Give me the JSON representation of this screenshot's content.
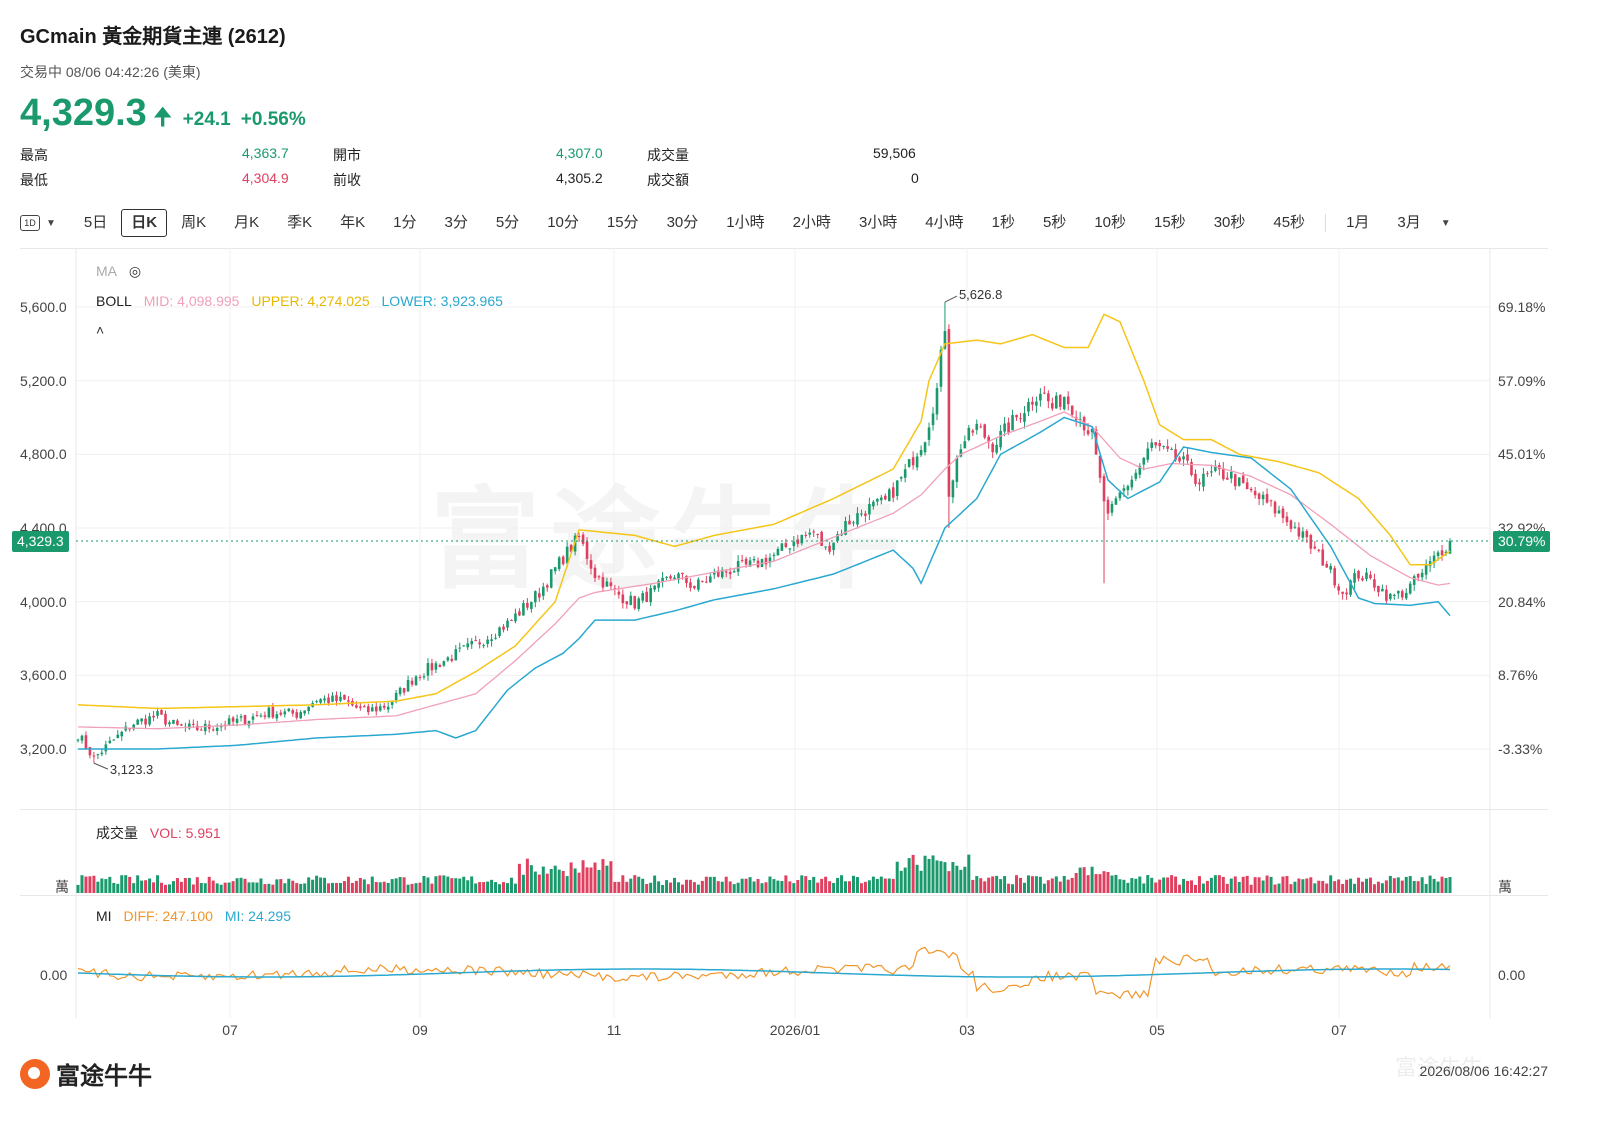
{
  "header": {
    "title": "GCmain  黃金期貨主連 (2612)",
    "status": "交易中 08/06 04:42:26 (美東)",
    "price": "4,329.3",
    "change": "+24.1",
    "change_pct": "+0.56%"
  },
  "stats": {
    "high_label": "最高",
    "high": "4,363.7",
    "low_label": "最低",
    "low": "4,304.9",
    "open_label": "開市",
    "open": "4,307.0",
    "prev_label": "前收",
    "prev": "4,305.2",
    "vol_label": "成交量",
    "vol": "59,506",
    "amt_label": "成交額",
    "amt": "0"
  },
  "tabs": {
    "period_icon": "1D",
    "items": [
      "5日",
      "日K",
      "周K",
      "月K",
      "季K",
      "年K",
      "1分",
      "3分",
      "5分",
      "10分",
      "15分",
      "30分",
      "1小時",
      "2小時",
      "3小時",
      "4小時",
      "1秒",
      "5秒",
      "10秒",
      "15秒",
      "30秒",
      "45秒"
    ],
    "active": "日K",
    "extra": [
      "1月",
      "3月"
    ]
  },
  "indicators": {
    "ma_label": "MA",
    "boll_label": "BOLL",
    "boll_mid": "MID: 4,098.995",
    "boll_upper": "UPPER: 4,274.025",
    "boll_lower": "LOWER: 3,923.965",
    "vol_label": "成交量",
    "vol_value": "VOL: 5.951",
    "vol_unit": "萬",
    "mi_label": "MI",
    "mi_diff": "DIFF: 247.100",
    "mi_mi": "MI: 24.295"
  },
  "colors": {
    "up": "#1a9a6c",
    "down": "#e04060",
    "boll_mid": "#f0a0b8",
    "boll_upper": "#f5c518",
    "boll_lower": "#2aa8d0",
    "mi_diff": "#f0962a",
    "mi_line": "#2aa8d0"
  },
  "chart_data": {
    "type": "candlestick",
    "title": "",
    "y_ticks": [
      "5,600.0",
      "5,200.0",
      "4,800.0",
      "4,400.0",
      "4,000.0",
      "3,600.0",
      "3,200.0"
    ],
    "pct_ticks": [
      "69.18%",
      "57.09%",
      "45.01%",
      "32.92%",
      "20.84%",
      "8.76%",
      "-3.33%"
    ],
    "x_ticks": [
      "07",
      "09",
      "11",
      "2026/01",
      "03",
      "05",
      "07"
    ],
    "ylim": [
      3000,
      5760
    ],
    "current_price": 4329.3,
    "current_price_label": "4,329.3",
    "current_pct_label": "30.79%",
    "max_label": "5,626.8",
    "min_label": "3,123.3",
    "close_anchors": [
      [
        0,
        3280
      ],
      [
        4,
        3150
      ],
      [
        8,
        3230
      ],
      [
        14,
        3340
      ],
      [
        20,
        3380
      ],
      [
        25,
        3320
      ],
      [
        30,
        3310
      ],
      [
        36,
        3330
      ],
      [
        42,
        3360
      ],
      [
        48,
        3400
      ],
      [
        55,
        3390
      ],
      [
        60,
        3470
      ],
      [
        67,
        3460
      ],
      [
        72,
        3400
      ],
      [
        78,
        3440
      ],
      [
        85,
        3600
      ],
      [
        92,
        3680
      ],
      [
        100,
        3770
      ],
      [
        108,
        3880
      ],
      [
        116,
        4050
      ],
      [
        122,
        4240
      ],
      [
        126,
        4350
      ],
      [
        130,
        4150
      ],
      [
        135,
        4050
      ],
      [
        140,
        3990
      ],
      [
        145,
        4060
      ],
      [
        150,
        4150
      ],
      [
        155,
        4080
      ],
      [
        160,
        4140
      ],
      [
        165,
        4180
      ],
      [
        170,
        4200
      ],
      [
        175,
        4250
      ],
      [
        180,
        4330
      ],
      [
        185,
        4380
      ],
      [
        188,
        4280
      ],
      [
        193,
        4420
      ],
      [
        198,
        4500
      ],
      [
        203,
        4540
      ],
      [
        208,
        4700
      ],
      [
        213,
        4900
      ],
      [
        216,
        5150
      ],
      [
        218,
        5500
      ],
      [
        219,
        4600
      ],
      [
        222,
        4850
      ],
      [
        226,
        4950
      ],
      [
        230,
        4850
      ],
      [
        234,
        4950
      ],
      [
        238,
        5050
      ],
      [
        242,
        5150
      ],
      [
        245,
        5050
      ],
      [
        248,
        5120
      ],
      [
        252,
        5000
      ],
      [
        255,
        4900
      ],
      [
        257,
        4650
      ],
      [
        259,
        4450
      ],
      [
        262,
        4580
      ],
      [
        266,
        4700
      ],
      [
        270,
        4850
      ],
      [
        274,
        4800
      ],
      [
        278,
        4750
      ],
      [
        282,
        4650
      ],
      [
        286,
        4700
      ],
      [
        290,
        4680
      ],
      [
        294,
        4600
      ],
      [
        298,
        4550
      ],
      [
        302,
        4480
      ],
      [
        306,
        4400
      ],
      [
        310,
        4300
      ],
      [
        314,
        4200
      ],
      [
        318,
        4050
      ],
      [
        322,
        4150
      ],
      [
        326,
        4100
      ],
      [
        330,
        4020
      ],
      [
        334,
        4060
      ],
      [
        338,
        4150
      ],
      [
        342,
        4260
      ],
      [
        345,
        4329.3
      ]
    ],
    "mid_anchors": [
      [
        0,
        3320
      ],
      [
        20,
        3310
      ],
      [
        40,
        3330
      ],
      [
        60,
        3360
      ],
      [
        80,
        3380
      ],
      [
        100,
        3500
      ],
      [
        110,
        3680
      ],
      [
        120,
        3880
      ],
      [
        126,
        4020
      ],
      [
        130,
        4050
      ],
      [
        145,
        4100
      ],
      [
        160,
        4160
      ],
      [
        175,
        4220
      ],
      [
        190,
        4350
      ],
      [
        205,
        4480
      ],
      [
        212,
        4580
      ],
      [
        218,
        4720
      ],
      [
        222,
        4800
      ],
      [
        232,
        4900
      ],
      [
        242,
        4980
      ],
      [
        248,
        5030
      ],
      [
        255,
        4950
      ],
      [
        262,
        4780
      ],
      [
        268,
        4720
      ],
      [
        275,
        4750
      ],
      [
        285,
        4740
      ],
      [
        295,
        4680
      ],
      [
        305,
        4580
      ],
      [
        315,
        4420
      ],
      [
        325,
        4250
      ],
      [
        335,
        4130
      ],
      [
        342,
        4090
      ],
      [
        345,
        4099
      ]
    ],
    "upper_anchors": [
      [
        0,
        3440
      ],
      [
        20,
        3420
      ],
      [
        40,
        3430
      ],
      [
        60,
        3440
      ],
      [
        80,
        3460
      ],
      [
        90,
        3500
      ],
      [
        100,
        3620
      ],
      [
        110,
        3760
      ],
      [
        120,
        4000
      ],
      [
        126,
        4390
      ],
      [
        140,
        4360
      ],
      [
        150,
        4300
      ],
      [
        160,
        4360
      ],
      [
        175,
        4420
      ],
      [
        190,
        4560
      ],
      [
        205,
        4720
      ],
      [
        212,
        4980
      ],
      [
        214,
        5200
      ],
      [
        218,
        5400
      ],
      [
        226,
        5420
      ],
      [
        232,
        5400
      ],
      [
        240,
        5450
      ],
      [
        248,
        5380
      ],
      [
        254,
        5380
      ],
      [
        258,
        5560
      ],
      [
        262,
        5520
      ],
      [
        268,
        5200
      ],
      [
        272,
        4960
      ],
      [
        278,
        4880
      ],
      [
        285,
        4880
      ],
      [
        292,
        4800
      ],
      [
        302,
        4760
      ],
      [
        312,
        4700
      ],
      [
        322,
        4560
      ],
      [
        330,
        4360
      ],
      [
        335,
        4200
      ],
      [
        340,
        4200
      ],
      [
        345,
        4274
      ]
    ],
    "lower_anchors": [
      [
        0,
        3200
      ],
      [
        20,
        3200
      ],
      [
        40,
        3220
      ],
      [
        60,
        3260
      ],
      [
        80,
        3280
      ],
      [
        90,
        3300
      ],
      [
        95,
        3260
      ],
      [
        100,
        3300
      ],
      [
        108,
        3520
      ],
      [
        115,
        3640
      ],
      [
        122,
        3720
      ],
      [
        126,
        3800
      ],
      [
        130,
        3900
      ],
      [
        140,
        3900
      ],
      [
        150,
        3950
      ],
      [
        160,
        4010
      ],
      [
        175,
        4070
      ],
      [
        190,
        4150
      ],
      [
        205,
        4280
      ],
      [
        210,
        4180
      ],
      [
        212,
        4100
      ],
      [
        218,
        4400
      ],
      [
        226,
        4560
      ],
      [
        232,
        4800
      ],
      [
        242,
        4920
      ],
      [
        248,
        5000
      ],
      [
        255,
        4950
      ],
      [
        259,
        4660
      ],
      [
        264,
        4560
      ],
      [
        272,
        4650
      ],
      [
        278,
        4840
      ],
      [
        285,
        4810
      ],
      [
        295,
        4780
      ],
      [
        305,
        4610
      ],
      [
        315,
        4300
      ],
      [
        322,
        4020
      ],
      [
        326,
        3990
      ],
      [
        335,
        3980
      ],
      [
        342,
        4000
      ],
      [
        345,
        3924
      ]
    ],
    "volume_series": "VOL",
    "mi_series": [
      "DIFF",
      "MI"
    ]
  },
  "footer": {
    "brand": "富途牛牛",
    "timestamp": "2026/08/06 16:42:27"
  }
}
